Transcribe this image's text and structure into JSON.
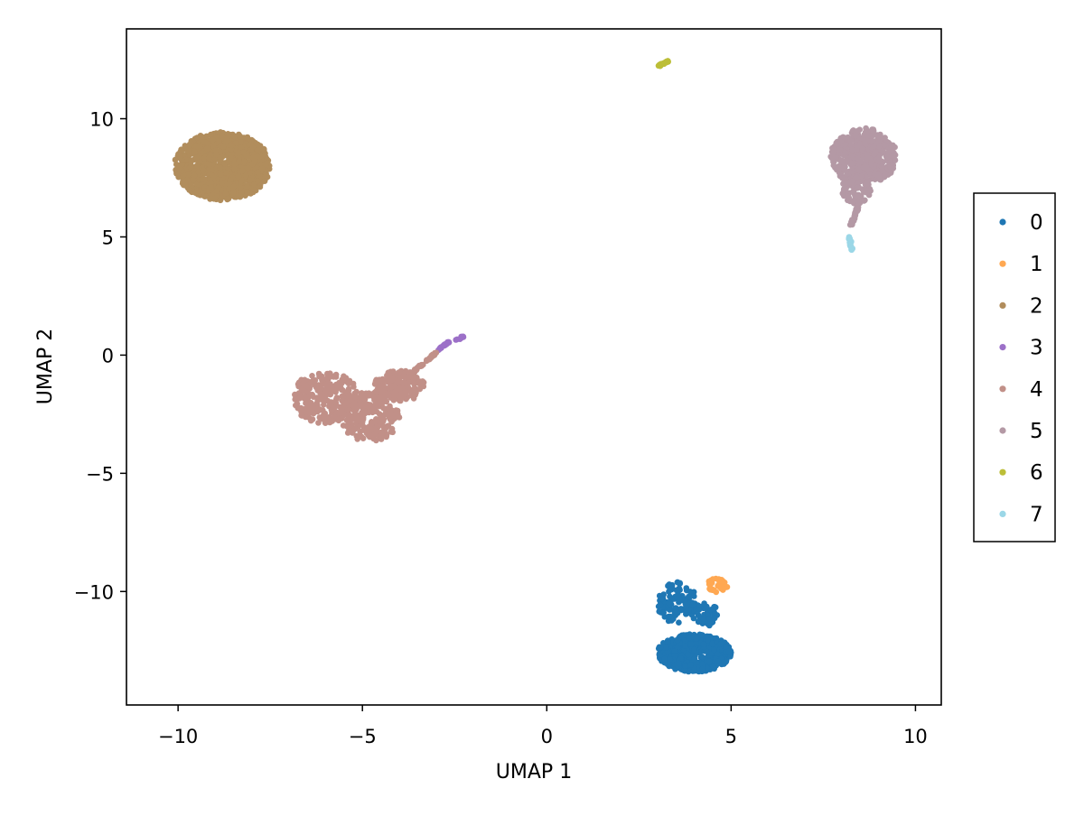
{
  "chart_data": {
    "type": "scatter",
    "title": "",
    "xlabel": "UMAP 1",
    "ylabel": "UMAP 2",
    "xlim": [
      -11.4,
      10.7
    ],
    "ylim": [
      -14.8,
      13.8
    ],
    "xticks": [
      -10,
      -5,
      0,
      5,
      10
    ],
    "xtick_labels": [
      "−10",
      "−5",
      "0",
      "5",
      "10"
    ],
    "yticks": [
      -10,
      -5,
      0,
      5,
      10
    ],
    "ytick_labels": [
      "−10",
      "−5",
      "0",
      "5",
      "10"
    ],
    "grid": false,
    "legend_position": "right",
    "series": [
      {
        "name": "0",
        "color": "#1f77b4",
        "clusters": [
          {
            "shape": "ellipse",
            "cx": 4.0,
            "cy": -12.6,
            "rx": 1.0,
            "ry": 0.8,
            "n": 650
          },
          {
            "shape": "ellipse",
            "cx": 3.55,
            "cy": -10.5,
            "rx": 0.55,
            "ry": 0.9,
            "n": 110
          },
          {
            "shape": "ellipse",
            "cx": 4.3,
            "cy": -11.0,
            "rx": 0.4,
            "ry": 0.5,
            "n": 40
          }
        ]
      },
      {
        "name": "1",
        "color": "#ffa852",
        "clusters": [
          {
            "shape": "ellipse",
            "cx": 4.6,
            "cy": -9.75,
            "rx": 0.3,
            "ry": 0.3,
            "n": 35
          }
        ]
      },
      {
        "name": "2",
        "color": "#b18d5c",
        "clusters": [
          {
            "shape": "ellipse",
            "cx": -8.8,
            "cy": 8.0,
            "rx": 1.3,
            "ry": 1.45,
            "n": 1100
          }
        ]
      },
      {
        "name": "3",
        "color": "#9c70c8",
        "clusters": [
          {
            "shape": "line",
            "x0": -2.95,
            "y0": 0.2,
            "x1": -2.65,
            "y1": 0.55,
            "n": 20
          },
          {
            "shape": "line",
            "x0": -2.45,
            "y0": 0.65,
            "x1": -2.25,
            "y1": 0.8,
            "n": 10
          }
        ]
      },
      {
        "name": "4",
        "color": "#c19088",
        "clusters": [
          {
            "shape": "ellipse",
            "cx": -6.0,
            "cy": -1.8,
            "rx": 0.9,
            "ry": 1.1,
            "n": 260
          },
          {
            "shape": "ellipse",
            "cx": -4.8,
            "cy": -2.6,
            "rx": 0.8,
            "ry": 1.05,
            "n": 240
          },
          {
            "shape": "ellipse",
            "cx": -4.0,
            "cy": -1.3,
            "rx": 0.7,
            "ry": 0.65,
            "n": 170
          },
          {
            "shape": "line",
            "x0": -3.6,
            "y0": -0.7,
            "x1": -3.0,
            "y1": 0.1,
            "n": 35
          }
        ]
      },
      {
        "name": "5",
        "color": "#b499a5",
        "clusters": [
          {
            "shape": "ellipse",
            "cx": 8.6,
            "cy": 8.4,
            "rx": 0.9,
            "ry": 1.2,
            "n": 450
          },
          {
            "shape": "ellipse",
            "cx": 8.4,
            "cy": 7.0,
            "rx": 0.4,
            "ry": 0.6,
            "n": 90
          },
          {
            "shape": "line",
            "x0": 8.5,
            "y0": 6.5,
            "x1": 8.25,
            "y1": 5.5,
            "n": 45
          }
        ]
      },
      {
        "name": "6",
        "color": "#bcbe37",
        "clusters": [
          {
            "shape": "line",
            "x0": 3.05,
            "y0": 12.25,
            "x1": 3.3,
            "y1": 12.45,
            "n": 25
          }
        ]
      },
      {
        "name": "7",
        "color": "#9bd7e7",
        "clusters": [
          {
            "shape": "line",
            "x0": 8.2,
            "y0": 5.0,
            "x1": 8.28,
            "y1": 4.45,
            "n": 22
          }
        ]
      }
    ]
  }
}
